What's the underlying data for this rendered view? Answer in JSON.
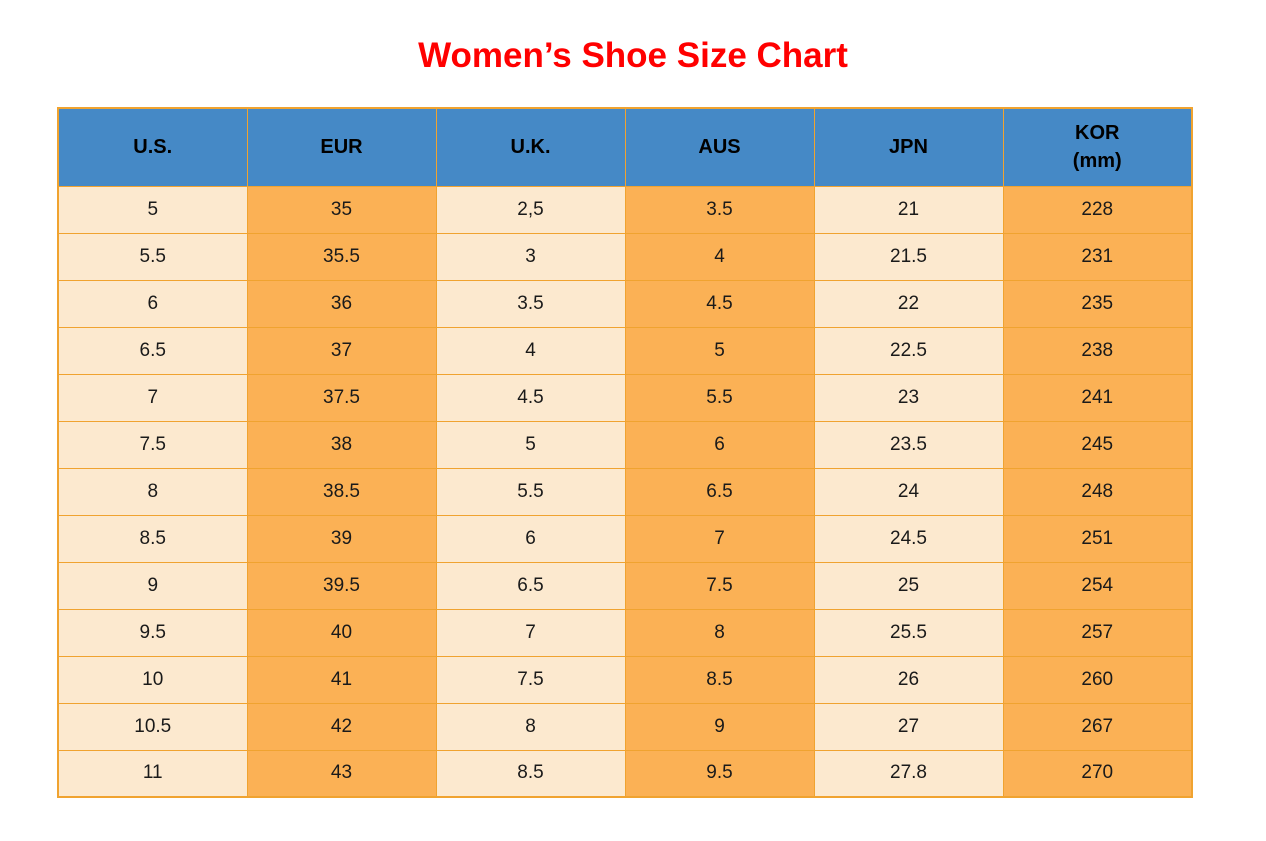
{
  "title": "Women’s Shoe Size Chart",
  "colors": {
    "title": "#ff0000",
    "header_bg": "#4589c6",
    "header_text": "#000000",
    "cell_light": "#fce9cf",
    "cell_orange": "#fbb155",
    "border": "#f0a330",
    "cell_text": "#1a1a1a"
  },
  "chart_data": {
    "type": "table",
    "title": "Women’s Shoe Size Chart",
    "columns": [
      {
        "key": "us",
        "label": "U.S.",
        "label_line2": ""
      },
      {
        "key": "eur",
        "label": "EUR",
        "label_line2": ""
      },
      {
        "key": "uk",
        "label": "U.K.",
        "label_line2": ""
      },
      {
        "key": "aus",
        "label": "AUS",
        "label_line2": ""
      },
      {
        "key": "jpn",
        "label": "JPN",
        "label_line2": ""
      },
      {
        "key": "kor",
        "label": "KOR",
        "label_line2": "(mm)"
      }
    ],
    "rows": [
      [
        "5",
        "35",
        "2,5",
        "3.5",
        "21",
        "228"
      ],
      [
        "5.5",
        "35.5",
        "3",
        "4",
        "21.5",
        "231"
      ],
      [
        "6",
        "36",
        "3.5",
        "4.5",
        "22",
        "235"
      ],
      [
        "6.5",
        "37",
        "4",
        "5",
        "22.5",
        "238"
      ],
      [
        "7",
        "37.5",
        "4.5",
        "5.5",
        "23",
        "241"
      ],
      [
        "7.5",
        "38",
        "5",
        "6",
        "23.5",
        "245"
      ],
      [
        "8",
        "38.5",
        "5.5",
        "6.5",
        "24",
        "248"
      ],
      [
        "8.5",
        "39",
        "6",
        "7",
        "24.5",
        "251"
      ],
      [
        "9",
        "39.5",
        "6.5",
        "7.5",
        "25",
        "254"
      ],
      [
        "9.5",
        "40",
        "7",
        "8",
        "25.5",
        "257"
      ],
      [
        "10",
        "41",
        "7.5",
        "8.5",
        "26",
        "260"
      ],
      [
        "10.5",
        "42",
        "8",
        "9",
        "27",
        "267"
      ],
      [
        "11",
        "43",
        "8.5",
        "9.5",
        "27.8",
        "270"
      ]
    ]
  }
}
